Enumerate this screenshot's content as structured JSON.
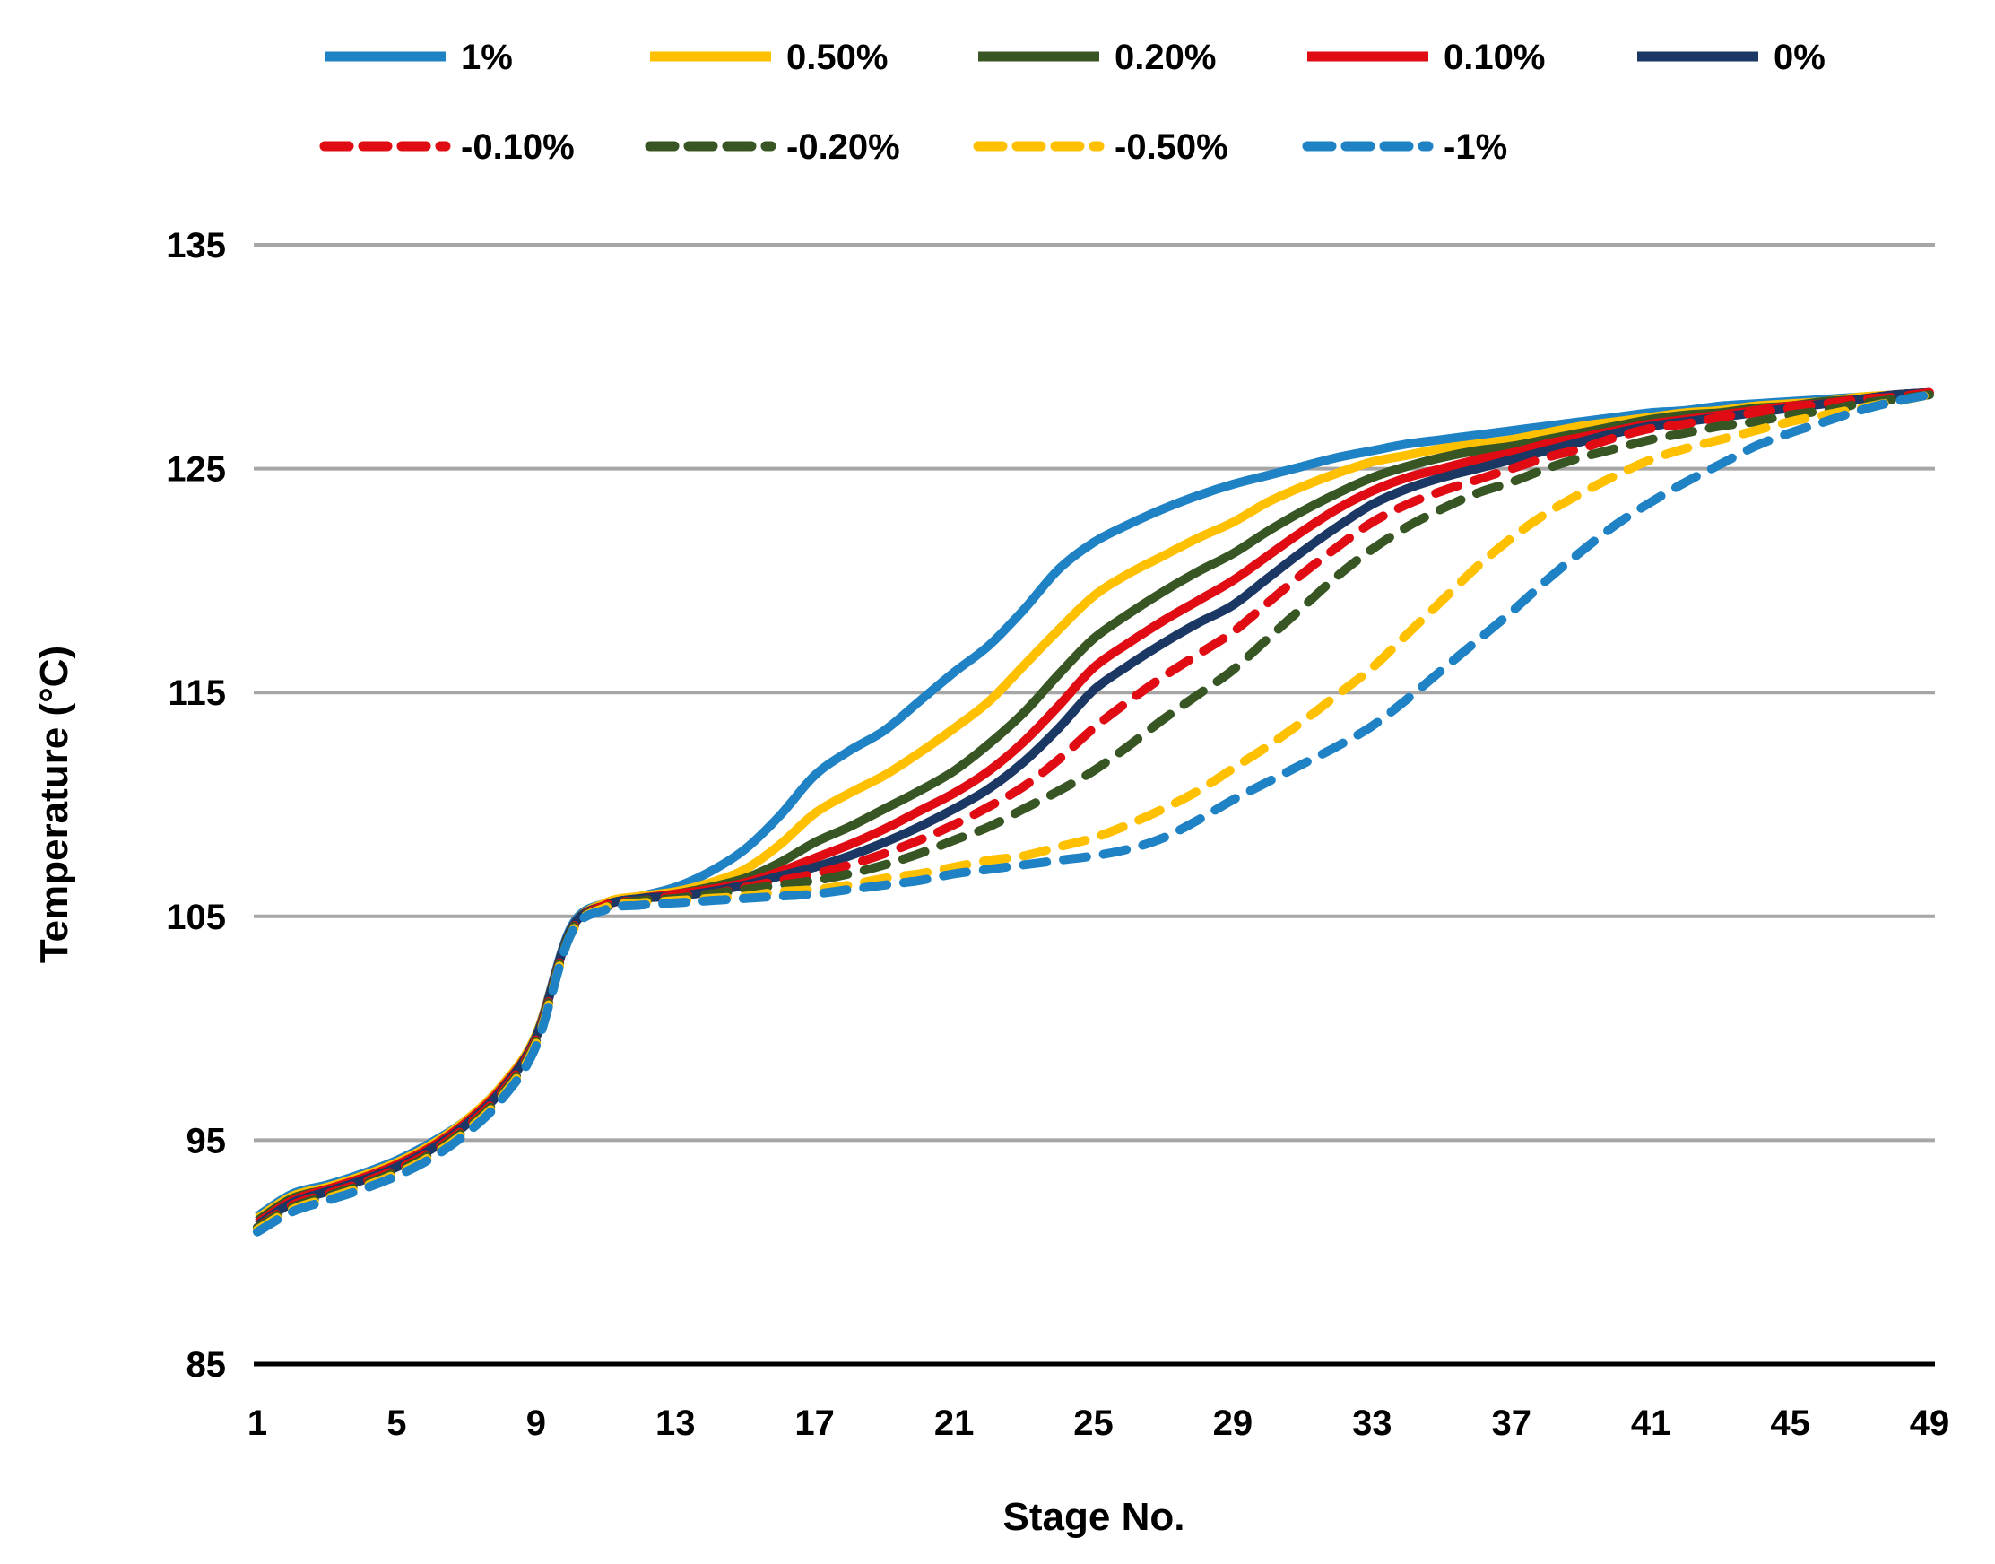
{
  "chart_data": {
    "type": "line",
    "title": "",
    "xlabel": "Stage No.",
    "ylabel": "Temperature (°C)",
    "xlim": [
      1,
      49
    ],
    "ylim": [
      85,
      135
    ],
    "x_ticks": [
      1,
      5,
      9,
      13,
      17,
      21,
      25,
      29,
      33,
      37,
      41,
      45,
      49
    ],
    "y_ticks": [
      85,
      95,
      105,
      115,
      125,
      135
    ],
    "grid": "horizontal-only",
    "legend_position": "top, two rows",
    "x": [
      1,
      2,
      3,
      4,
      5,
      6,
      7,
      8,
      9,
      10,
      11,
      12,
      13,
      14,
      15,
      16,
      17,
      18,
      19,
      20,
      21,
      22,
      23,
      24,
      25,
      26,
      27,
      28,
      29,
      30,
      31,
      32,
      33,
      34,
      35,
      36,
      37,
      38,
      39,
      40,
      41,
      42,
      43,
      44,
      45,
      46,
      47,
      48,
      49
    ],
    "series": [
      {
        "name": "1%",
        "color": "#1E82C4",
        "style": "solid",
        "values": [
          91.6,
          92.6,
          93.0,
          93.5,
          94.1,
          94.9,
          95.9,
          97.4,
          99.7,
          104.5,
          105.6,
          105.9,
          106.3,
          107.0,
          108.0,
          109.5,
          111.3,
          112.4,
          113.3,
          114.6,
          115.9,
          117.1,
          118.7,
          120.5,
          121.7,
          122.5,
          123.2,
          123.8,
          124.3,
          124.7,
          125.1,
          125.5,
          125.8,
          126.1,
          126.3,
          126.5,
          126.7,
          126.9,
          127.1,
          127.3,
          127.5,
          127.6,
          127.8,
          127.9,
          128.0,
          128.1,
          128.2,
          128.3,
          128.4
        ]
      },
      {
        "name": "0.50%",
        "color": "#FFC000",
        "style": "solid",
        "values": [
          91.5,
          92.5,
          92.9,
          93.4,
          94.0,
          94.8,
          95.9,
          97.4,
          99.7,
          104.4,
          105.6,
          105.9,
          106.1,
          106.5,
          107.1,
          108.2,
          109.6,
          110.5,
          111.3,
          112.3,
          113.4,
          114.6,
          116.2,
          117.8,
          119.3,
          120.3,
          121.1,
          121.9,
          122.6,
          123.5,
          124.2,
          124.8,
          125.3,
          125.6,
          125.9,
          126.1,
          126.3,
          126.6,
          126.9,
          127.1,
          127.3,
          127.5,
          127.6,
          127.8,
          127.9,
          128.0,
          128.2,
          128.3,
          128.4
        ]
      },
      {
        "name": "0.20%",
        "color": "#375623",
        "style": "solid",
        "values": [
          91.4,
          92.4,
          92.8,
          93.3,
          93.9,
          94.7,
          95.8,
          97.3,
          99.6,
          104.4,
          105.5,
          105.8,
          106.0,
          106.3,
          106.7,
          107.4,
          108.3,
          109.0,
          109.8,
          110.6,
          111.5,
          112.7,
          114.1,
          115.8,
          117.4,
          118.5,
          119.5,
          120.4,
          121.2,
          122.2,
          123.1,
          123.9,
          124.6,
          125.1,
          125.5,
          125.8,
          126.0,
          126.3,
          126.6,
          126.9,
          127.2,
          127.4,
          127.5,
          127.7,
          127.8,
          128.0,
          128.1,
          128.3,
          128.4
        ]
      },
      {
        "name": "0.10%",
        "color": "#E00B13",
        "style": "solid",
        "values": [
          91.3,
          92.3,
          92.8,
          93.3,
          93.9,
          94.7,
          95.8,
          97.3,
          99.6,
          104.4,
          105.5,
          105.8,
          106.0,
          106.2,
          106.5,
          107.0,
          107.6,
          108.2,
          108.9,
          109.7,
          110.5,
          111.5,
          112.8,
          114.4,
          116.1,
          117.2,
          118.2,
          119.1,
          120.0,
          121.1,
          122.2,
          123.2,
          124.0,
          124.6,
          125.0,
          125.4,
          125.7,
          126.1,
          126.4,
          126.7,
          127.0,
          127.2,
          127.4,
          127.6,
          127.8,
          127.9,
          128.1,
          128.3,
          128.4
        ]
      },
      {
        "name": "0%",
        "color": "#1B3764",
        "style": "solid",
        "values": [
          91.2,
          92.2,
          92.7,
          93.2,
          93.8,
          94.6,
          95.7,
          97.2,
          99.6,
          104.4,
          105.5,
          105.8,
          105.9,
          106.1,
          106.4,
          106.8,
          107.2,
          107.7,
          108.3,
          109.0,
          109.8,
          110.7,
          111.9,
          113.4,
          115.1,
          116.2,
          117.2,
          118.1,
          118.9,
          120.1,
          121.3,
          122.4,
          123.4,
          124.1,
          124.6,
          125.0,
          125.4,
          125.8,
          126.2,
          126.6,
          126.9,
          127.1,
          127.3,
          127.5,
          127.7,
          127.9,
          128.1,
          128.3,
          128.4
        ]
      },
      {
        "name": "-0.10%",
        "color": "#E00B13",
        "style": "dashed",
        "values": [
          91.1,
          92.1,
          92.6,
          93.1,
          93.7,
          94.5,
          95.6,
          97.1,
          99.5,
          104.3,
          105.5,
          105.7,
          105.9,
          106.0,
          106.3,
          106.6,
          106.9,
          107.3,
          107.8,
          108.4,
          109.1,
          109.9,
          110.8,
          112.0,
          113.4,
          114.6,
          115.7,
          116.7,
          117.7,
          119.0,
          120.3,
          121.5,
          122.6,
          123.4,
          124.0,
          124.5,
          125.0,
          125.5,
          125.9,
          126.4,
          126.8,
          127.0,
          127.3,
          127.5,
          127.7,
          127.9,
          128.1,
          128.2,
          128.4
        ]
      },
      {
        "name": "-0.20%",
        "color": "#375623",
        "style": "dashed",
        "values": [
          91.1,
          92.0,
          92.5,
          93.0,
          93.6,
          94.4,
          95.5,
          97.0,
          99.4,
          104.3,
          105.4,
          105.7,
          105.8,
          106.0,
          106.2,
          106.4,
          106.6,
          106.9,
          107.3,
          107.8,
          108.4,
          109.0,
          109.8,
          110.6,
          111.5,
          112.6,
          113.8,
          114.9,
          116.0,
          117.4,
          118.8,
          120.2,
          121.4,
          122.4,
          123.2,
          123.9,
          124.4,
          125.0,
          125.5,
          125.9,
          126.3,
          126.6,
          126.9,
          127.1,
          127.4,
          127.6,
          127.9,
          128.1,
          128.3
        ]
      },
      {
        "name": "-0.50%",
        "color": "#FFC000",
        "style": "dashed",
        "values": [
          91.0,
          91.9,
          92.4,
          92.9,
          93.5,
          94.3,
          95.4,
          96.9,
          99.3,
          104.2,
          105.4,
          105.6,
          105.7,
          105.8,
          105.9,
          106.1,
          106.2,
          106.4,
          106.7,
          106.9,
          107.2,
          107.5,
          107.7,
          108.1,
          108.5,
          109.1,
          109.8,
          110.6,
          111.6,
          112.6,
          113.7,
          114.9,
          116.1,
          117.6,
          119.1,
          120.6,
          121.9,
          123.0,
          123.9,
          124.7,
          125.4,
          125.9,
          126.3,
          126.7,
          127.1,
          127.4,
          127.7,
          128.0,
          128.3
        ]
      },
      {
        "name": "-1%",
        "color": "#1E82C4",
        "style": "dashed",
        "values": [
          90.9,
          91.8,
          92.3,
          92.8,
          93.4,
          94.2,
          95.3,
          96.8,
          99.2,
          104.2,
          105.3,
          105.5,
          105.6,
          105.7,
          105.8,
          105.9,
          106.0,
          106.2,
          106.4,
          106.6,
          106.9,
          107.1,
          107.3,
          107.5,
          107.7,
          108.0,
          108.5,
          109.3,
          110.2,
          111.0,
          111.8,
          112.6,
          113.5,
          114.7,
          116.0,
          117.3,
          118.6,
          120.0,
          121.3,
          122.5,
          123.5,
          124.4,
          125.2,
          126.0,
          126.6,
          127.1,
          127.6,
          128.0,
          128.3
        ]
      }
    ]
  },
  "legend": {
    "row1": [
      "1%",
      "0.50%",
      "0.20%",
      "0.10%",
      "0%"
    ],
    "row2": [
      "-0.10%",
      "-0.20%",
      "-0.50%",
      "-1%"
    ]
  },
  "colors": {
    "gridline": "#A6A6A6",
    "axis_line": "#000000",
    "background": "#FFFFFF"
  }
}
